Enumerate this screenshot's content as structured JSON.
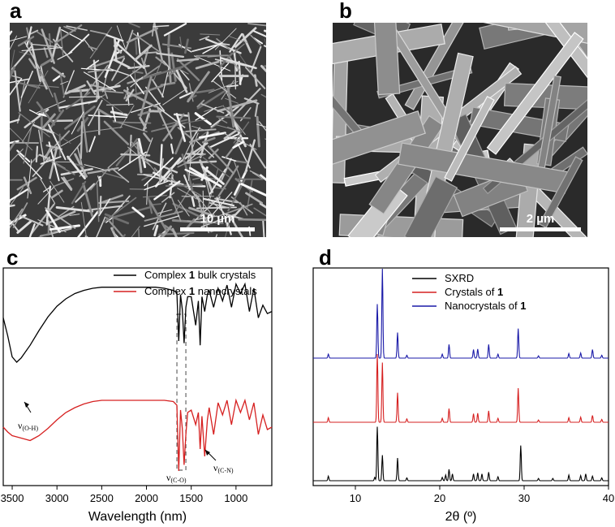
{
  "panels": {
    "a": {
      "label": "a",
      "scale_bar": "10  µm"
    },
    "b": {
      "label": "b",
      "scale_bar": "2  µm"
    },
    "c": {
      "label": "c"
    },
    "d": {
      "label": "d"
    }
  },
  "colors": {
    "black": "#000000",
    "red": "#d62020",
    "blue": "#1a1aa8"
  },
  "chart_data": [
    {
      "id": "c",
      "type": "line",
      "xlabel": "Wavelength (nm)",
      "xlim": [
        3600,
        600
      ],
      "xticks": [
        "3500",
        "3000",
        "2500",
        "2000",
        "1500",
        "1000"
      ],
      "xtick_values": [
        3500,
        3000,
        2500,
        2000,
        1500,
        1000
      ],
      "series": [
        {
          "name_prefix": "Complex ",
          "name_bold": "1",
          "name_suffix": " bulk crystals",
          "color": "#000000",
          "x": [
            3600,
            3550,
            3500,
            3450,
            3400,
            3300,
            3200,
            3100,
            3000,
            2900,
            2800,
            2700,
            2600,
            2500,
            2400,
            2300,
            2200,
            2100,
            2000,
            1900,
            1800,
            1700,
            1660,
            1640,
            1620,
            1600,
            1580,
            1560,
            1540,
            1500,
            1450,
            1420,
            1400,
            1380,
            1350,
            1320,
            1300,
            1250,
            1200,
            1150,
            1100,
            1050,
            1000,
            950,
            900,
            850,
            800,
            750,
            700,
            650,
            600
          ],
          "y": [
            0.62,
            0.45,
            0.25,
            0.2,
            0.24,
            0.36,
            0.5,
            0.63,
            0.73,
            0.8,
            0.85,
            0.88,
            0.9,
            0.91,
            0.91,
            0.91,
            0.91,
            0.91,
            0.91,
            0.91,
            0.9,
            0.88,
            0.86,
            0.4,
            0.84,
            0.7,
            0.38,
            0.72,
            0.82,
            0.82,
            0.55,
            0.78,
            0.36,
            0.82,
            0.68,
            0.84,
            0.88,
            0.72,
            0.9,
            0.78,
            0.93,
            0.72,
            0.94,
            0.85,
            0.94,
            0.68,
            0.9,
            0.62,
            0.74,
            0.66,
            0.68
          ]
        },
        {
          "name_prefix": "Complex ",
          "name_bold": "1",
          "name_suffix": " nanocrystals",
          "color": "#d62020",
          "x": [
            3600,
            3550,
            3500,
            3450,
            3400,
            3350,
            3300,
            3250,
            3200,
            3100,
            3000,
            2900,
            2800,
            2700,
            2600,
            2500,
            2400,
            2300,
            2200,
            2100,
            2000,
            1900,
            1800,
            1700,
            1660,
            1640,
            1620,
            1600,
            1580,
            1560,
            1540,
            1500,
            1450,
            1420,
            1400,
            1380,
            1350,
            1320,
            1300,
            1250,
            1200,
            1150,
            1100,
            1050,
            1000,
            950,
            900,
            850,
            800,
            750,
            700,
            650,
            600
          ],
          "y": [
            0.36,
            0.32,
            0.29,
            0.28,
            0.27,
            0.26,
            0.25,
            0.27,
            0.29,
            0.35,
            0.42,
            0.48,
            0.52,
            0.55,
            0.57,
            0.58,
            0.58,
            0.58,
            0.58,
            0.58,
            0.58,
            0.58,
            0.58,
            0.57,
            0.54,
            0.0,
            0.5,
            0.35,
            0.05,
            0.3,
            0.48,
            0.5,
            0.38,
            0.48,
            0.18,
            0.45,
            0.12,
            0.42,
            0.52,
            0.3,
            0.56,
            0.46,
            0.58,
            0.38,
            0.58,
            0.48,
            0.58,
            0.42,
            0.56,
            0.3,
            0.46,
            0.34,
            0.36
          ]
        }
      ],
      "annotations": [
        {
          "sym": "ν",
          "sub": "(O-H)",
          "x": 3330
        },
        {
          "sym": "ν",
          "sub": "(C-O)",
          "x": 1600
        },
        {
          "sym": "ν",
          "sub": "(C-N)",
          "x": 1360
        }
      ],
      "highlight_range": [
        1660,
        1560
      ]
    },
    {
      "id": "d",
      "type": "line",
      "xlabel": "2θ (º)",
      "xlim": [
        5,
        40
      ],
      "xticks": [
        "10",
        "20",
        "30",
        "40"
      ],
      "xtick_values": [
        10,
        20,
        30,
        40
      ],
      "series": [
        {
          "name_prefix": "SXRD",
          "name_bold": "",
          "name_suffix": "",
          "color": "#000000",
          "peaks": [
            [
              6.8,
              0.08
            ],
            [
              12.3,
              0.06
            ],
            [
              12.6,
              0.95
            ],
            [
              13.2,
              0.45
            ],
            [
              15.0,
              0.4
            ],
            [
              16.1,
              0.05
            ],
            [
              20.3,
              0.06
            ],
            [
              20.7,
              0.1
            ],
            [
              21.1,
              0.2
            ],
            [
              21.5,
              0.12
            ],
            [
              24.0,
              0.12
            ],
            [
              24.5,
              0.14
            ],
            [
              25.0,
              0.12
            ],
            [
              25.8,
              0.15
            ],
            [
              26.9,
              0.07
            ],
            [
              29.6,
              0.62
            ],
            [
              31.7,
              0.04
            ],
            [
              33.4,
              0.04
            ],
            [
              35.3,
              0.1
            ],
            [
              36.7,
              0.09
            ],
            [
              37.3,
              0.12
            ],
            [
              38.1,
              0.08
            ],
            [
              39.2,
              0.05
            ]
          ]
        },
        {
          "name_prefix": "Crystals of ",
          "name_bold": "1",
          "name_suffix": "",
          "color": "#d62020",
          "peaks": [
            [
              6.8,
              0.08
            ],
            [
              12.6,
              1.2
            ],
            [
              13.2,
              1.05
            ],
            [
              15.0,
              0.52
            ],
            [
              16.1,
              0.06
            ],
            [
              20.3,
              0.07
            ],
            [
              21.1,
              0.24
            ],
            [
              24.0,
              0.15
            ],
            [
              24.5,
              0.16
            ],
            [
              25.8,
              0.2
            ],
            [
              26.9,
              0.07
            ],
            [
              29.3,
              0.6
            ],
            [
              31.7,
              0.04
            ],
            [
              35.3,
              0.08
            ],
            [
              36.7,
              0.09
            ],
            [
              38.1,
              0.12
            ],
            [
              39.2,
              0.05
            ]
          ]
        },
        {
          "name_prefix": "Nanocrystals of ",
          "name_bold": "1",
          "name_suffix": "",
          "color": "#1a1aa8",
          "peaks": [
            [
              6.8,
              0.07
            ],
            [
              12.6,
              0.95
            ],
            [
              13.2,
              1.6
            ],
            [
              15.0,
              0.45
            ],
            [
              16.1,
              0.05
            ],
            [
              20.3,
              0.07
            ],
            [
              21.1,
              0.24
            ],
            [
              24.0,
              0.15
            ],
            [
              24.5,
              0.16
            ],
            [
              25.8,
              0.24
            ],
            [
              26.9,
              0.07
            ],
            [
              29.3,
              0.52
            ],
            [
              31.7,
              0.04
            ],
            [
              35.3,
              0.08
            ],
            [
              36.7,
              0.09
            ],
            [
              38.1,
              0.15
            ],
            [
              39.2,
              0.05
            ]
          ]
        }
      ]
    }
  ]
}
